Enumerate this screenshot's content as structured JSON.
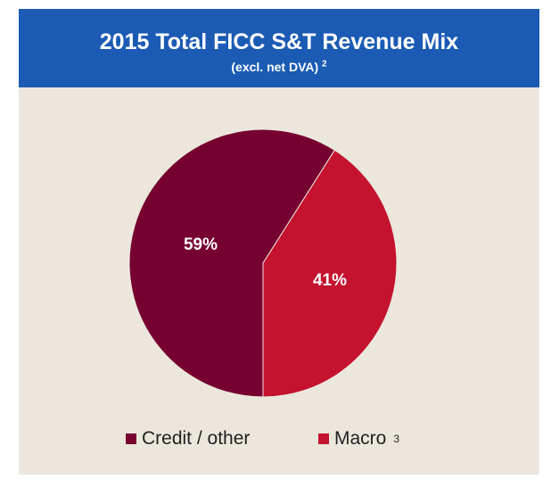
{
  "header": {
    "title": "2015 Total FICC S&T Revenue Mix",
    "subtitle": "(excl. net DVA)",
    "subtitle_note": "2"
  },
  "colors": {
    "header_bg": "#1b5bb4",
    "panel_bg": "#ece7dd",
    "credit_other": "#760030",
    "macro": "#c4122f"
  },
  "chart_data": {
    "type": "pie",
    "title": "2015 Total FICC S&T Revenue Mix",
    "subtitle": "(excl. net DVA) 2",
    "categories": [
      "Credit / other",
      "Macro"
    ],
    "values": [
      59,
      41
    ],
    "labels": [
      "59%",
      "41%"
    ],
    "legend_position": "bottom"
  },
  "legend": {
    "items": [
      {
        "label": "Credit / other",
        "note": ""
      },
      {
        "label": "Macro",
        "note": "3"
      }
    ]
  }
}
